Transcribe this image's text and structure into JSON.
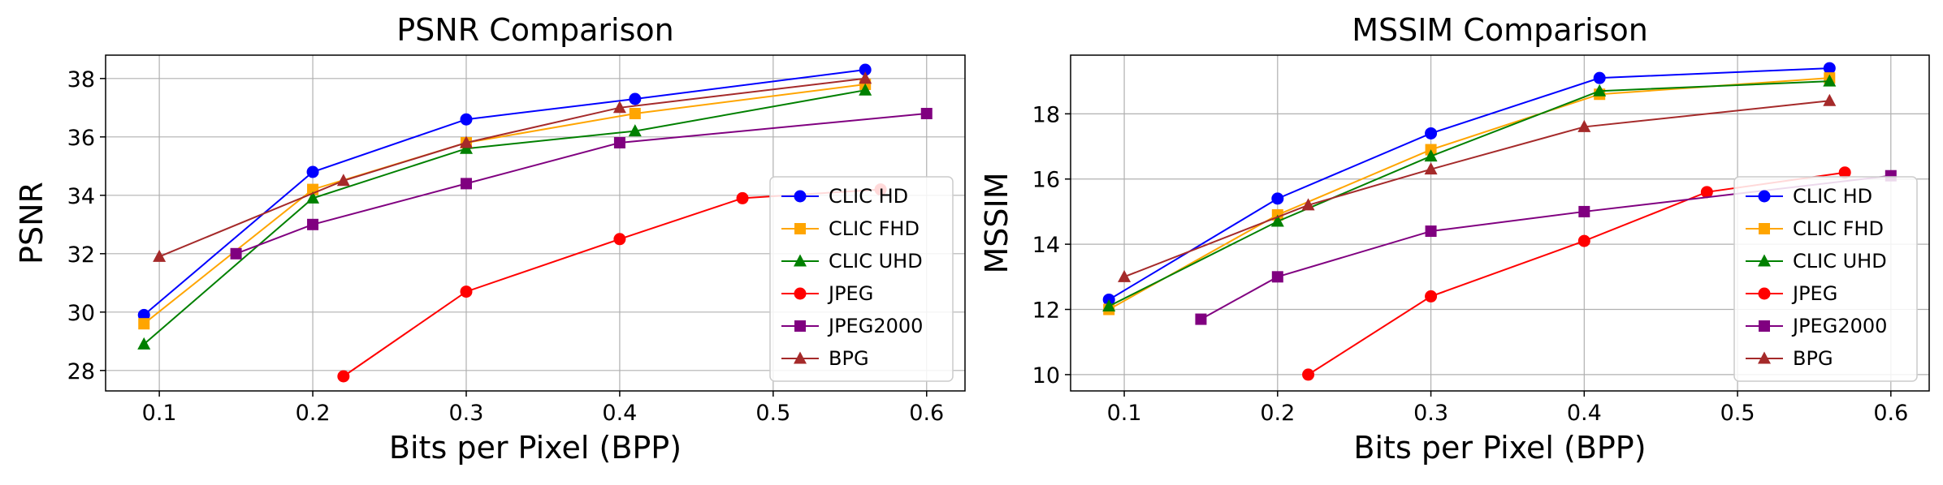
{
  "chart_data": [
    {
      "type": "line",
      "title": "PSNR Comparison",
      "xlabel": "Bits per Pixel (BPP)",
      "ylabel": "PSNR",
      "xlim": [
        0.065,
        0.625
      ],
      "ylim": [
        27.3,
        38.8
      ],
      "xticks": [
        0.1,
        0.2,
        0.3,
        0.4,
        0.5,
        0.6
      ],
      "xtick_labels": [
        "0.1",
        "0.2",
        "0.3",
        "0.4",
        "0.5",
        "0.6"
      ],
      "yticks": [
        28,
        30,
        32,
        34,
        36,
        38
      ],
      "ytick_labels": [
        "28",
        "30",
        "32",
        "34",
        "36",
        "38"
      ],
      "grid": true,
      "legend_position": "center-right",
      "series": [
        {
          "name": "CLIC HD",
          "color": "#0000ff",
          "marker": "circle",
          "x": [
            0.09,
            0.2,
            0.3,
            0.41,
            0.56
          ],
          "y": [
            29.9,
            34.8,
            36.6,
            37.3,
            38.3
          ]
        },
        {
          "name": "CLIC FHD",
          "color": "#ffa500",
          "marker": "square",
          "x": [
            0.09,
            0.2,
            0.3,
            0.41,
            0.56
          ],
          "y": [
            29.6,
            34.2,
            35.8,
            36.8,
            37.8
          ]
        },
        {
          "name": "CLIC UHD",
          "color": "#008000",
          "marker": "triangle",
          "x": [
            0.09,
            0.2,
            0.3,
            0.41,
            0.56
          ],
          "y": [
            28.9,
            33.9,
            35.6,
            36.2,
            37.6
          ]
        },
        {
          "name": "JPEG",
          "color": "#ff0000",
          "marker": "circle",
          "x": [
            0.22,
            0.3,
            0.4,
            0.48,
            0.57
          ],
          "y": [
            27.8,
            30.7,
            32.5,
            33.9,
            34.2
          ]
        },
        {
          "name": "JPEG2000",
          "color": "#800080",
          "marker": "square",
          "x": [
            0.15,
            0.2,
            0.3,
            0.4,
            0.6
          ],
          "y": [
            32.0,
            33.0,
            34.4,
            35.8,
            36.8
          ]
        },
        {
          "name": "BPG",
          "color": "#a52a2a",
          "marker": "triangle",
          "x": [
            0.1,
            0.22,
            0.3,
            0.4,
            0.56
          ],
          "y": [
            31.9,
            34.5,
            35.8,
            37.0,
            38.0
          ]
        }
      ]
    },
    {
      "type": "line",
      "title": "MSSIM Comparison",
      "xlabel": "Bits per Pixel (BPP)",
      "ylabel": "MSSIM",
      "xlim": [
        0.065,
        0.625
      ],
      "ylim": [
        9.5,
        19.8
      ],
      "xticks": [
        0.1,
        0.2,
        0.3,
        0.4,
        0.5,
        0.6
      ],
      "xtick_labels": [
        "0.1",
        "0.2",
        "0.3",
        "0.4",
        "0.5",
        "0.6"
      ],
      "yticks": [
        10,
        12,
        14,
        16,
        18
      ],
      "ytick_labels": [
        "10",
        "12",
        "14",
        "16",
        "18"
      ],
      "grid": true,
      "legend_position": "center-right",
      "series": [
        {
          "name": "CLIC HD",
          "color": "#0000ff",
          "marker": "circle",
          "x": [
            0.09,
            0.2,
            0.3,
            0.41,
            0.56
          ],
          "y": [
            12.3,
            15.4,
            17.4,
            19.1,
            19.4
          ]
        },
        {
          "name": "CLIC FHD",
          "color": "#ffa500",
          "marker": "square",
          "x": [
            0.09,
            0.2,
            0.3,
            0.41,
            0.56
          ],
          "y": [
            12.0,
            14.9,
            16.9,
            18.6,
            19.1
          ]
        },
        {
          "name": "CLIC UHD",
          "color": "#008000",
          "marker": "triangle",
          "x": [
            0.09,
            0.2,
            0.3,
            0.41,
            0.56
          ],
          "y": [
            12.1,
            14.7,
            16.7,
            18.7,
            19.0
          ]
        },
        {
          "name": "JPEG",
          "color": "#ff0000",
          "marker": "circle",
          "x": [
            0.22,
            0.3,
            0.4,
            0.48,
            0.57
          ],
          "y": [
            10.0,
            12.4,
            14.1,
            15.6,
            16.2
          ]
        },
        {
          "name": "JPEG2000",
          "color": "#800080",
          "marker": "square",
          "x": [
            0.15,
            0.2,
            0.3,
            0.4,
            0.6
          ],
          "y": [
            11.7,
            13.0,
            14.4,
            15.0,
            16.1
          ]
        },
        {
          "name": "BPG",
          "color": "#a52a2a",
          "marker": "triangle",
          "x": [
            0.1,
            0.22,
            0.3,
            0.4,
            0.56
          ],
          "y": [
            13.0,
            15.2,
            16.3,
            17.6,
            18.4
          ]
        }
      ]
    }
  ]
}
